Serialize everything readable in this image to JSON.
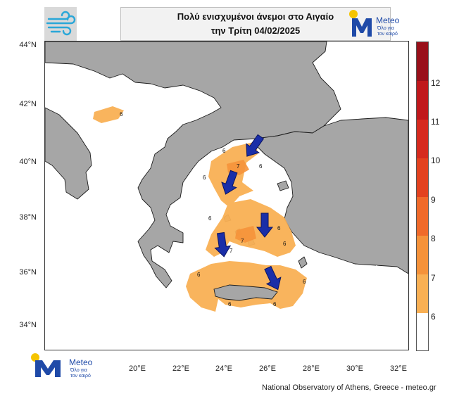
{
  "header": {
    "title_line1": "Πολύ ενισχυμένοι άνεμοι στο Αιγαίο",
    "title_line2": "την Τρίτη 04/02/2025"
  },
  "logo": {
    "name": "Meteo",
    "tagline_line1": "Όλο για",
    "tagline_line2": "τον καιρό",
    "colors": {
      "blue": "#1f4aa8",
      "sun": "#f5c400"
    }
  },
  "map": {
    "region": "Aegean Sea / Greece",
    "lat_labels": [
      "44°N",
      "42°N",
      "40°N",
      "38°N",
      "36°N",
      "34°N"
    ],
    "lon_labels": [
      "20°E",
      "22°E",
      "24°E",
      "26°E",
      "28°E",
      "30°E",
      "32°E"
    ],
    "contour_labels": [
      "6",
      "6",
      "6",
      "6",
      "6",
      "6",
      "6",
      "6",
      "7",
      "7",
      "7",
      "6",
      "6",
      "6"
    ],
    "arrow_icon": "wind-direction-arrow",
    "colors": {
      "sea": "#ffffff",
      "land": "#a6a6a6",
      "wind_6_7": "#f9b054",
      "wind_7_8": "#f5923a",
      "arrow": "#1a2ea8"
    }
  },
  "colorbar": {
    "labels": [
      "12",
      "11",
      "10",
      "9",
      "8",
      "7",
      "6"
    ],
    "colors": [
      "#ffffff",
      "#f9b054",
      "#f5923a",
      "#f06a2a",
      "#e3421f",
      "#d62a1e",
      "#c0181c",
      "#99101a"
    ]
  },
  "footer": {
    "credit": "National Observatory of Athens, Greece - meteo.gr"
  }
}
